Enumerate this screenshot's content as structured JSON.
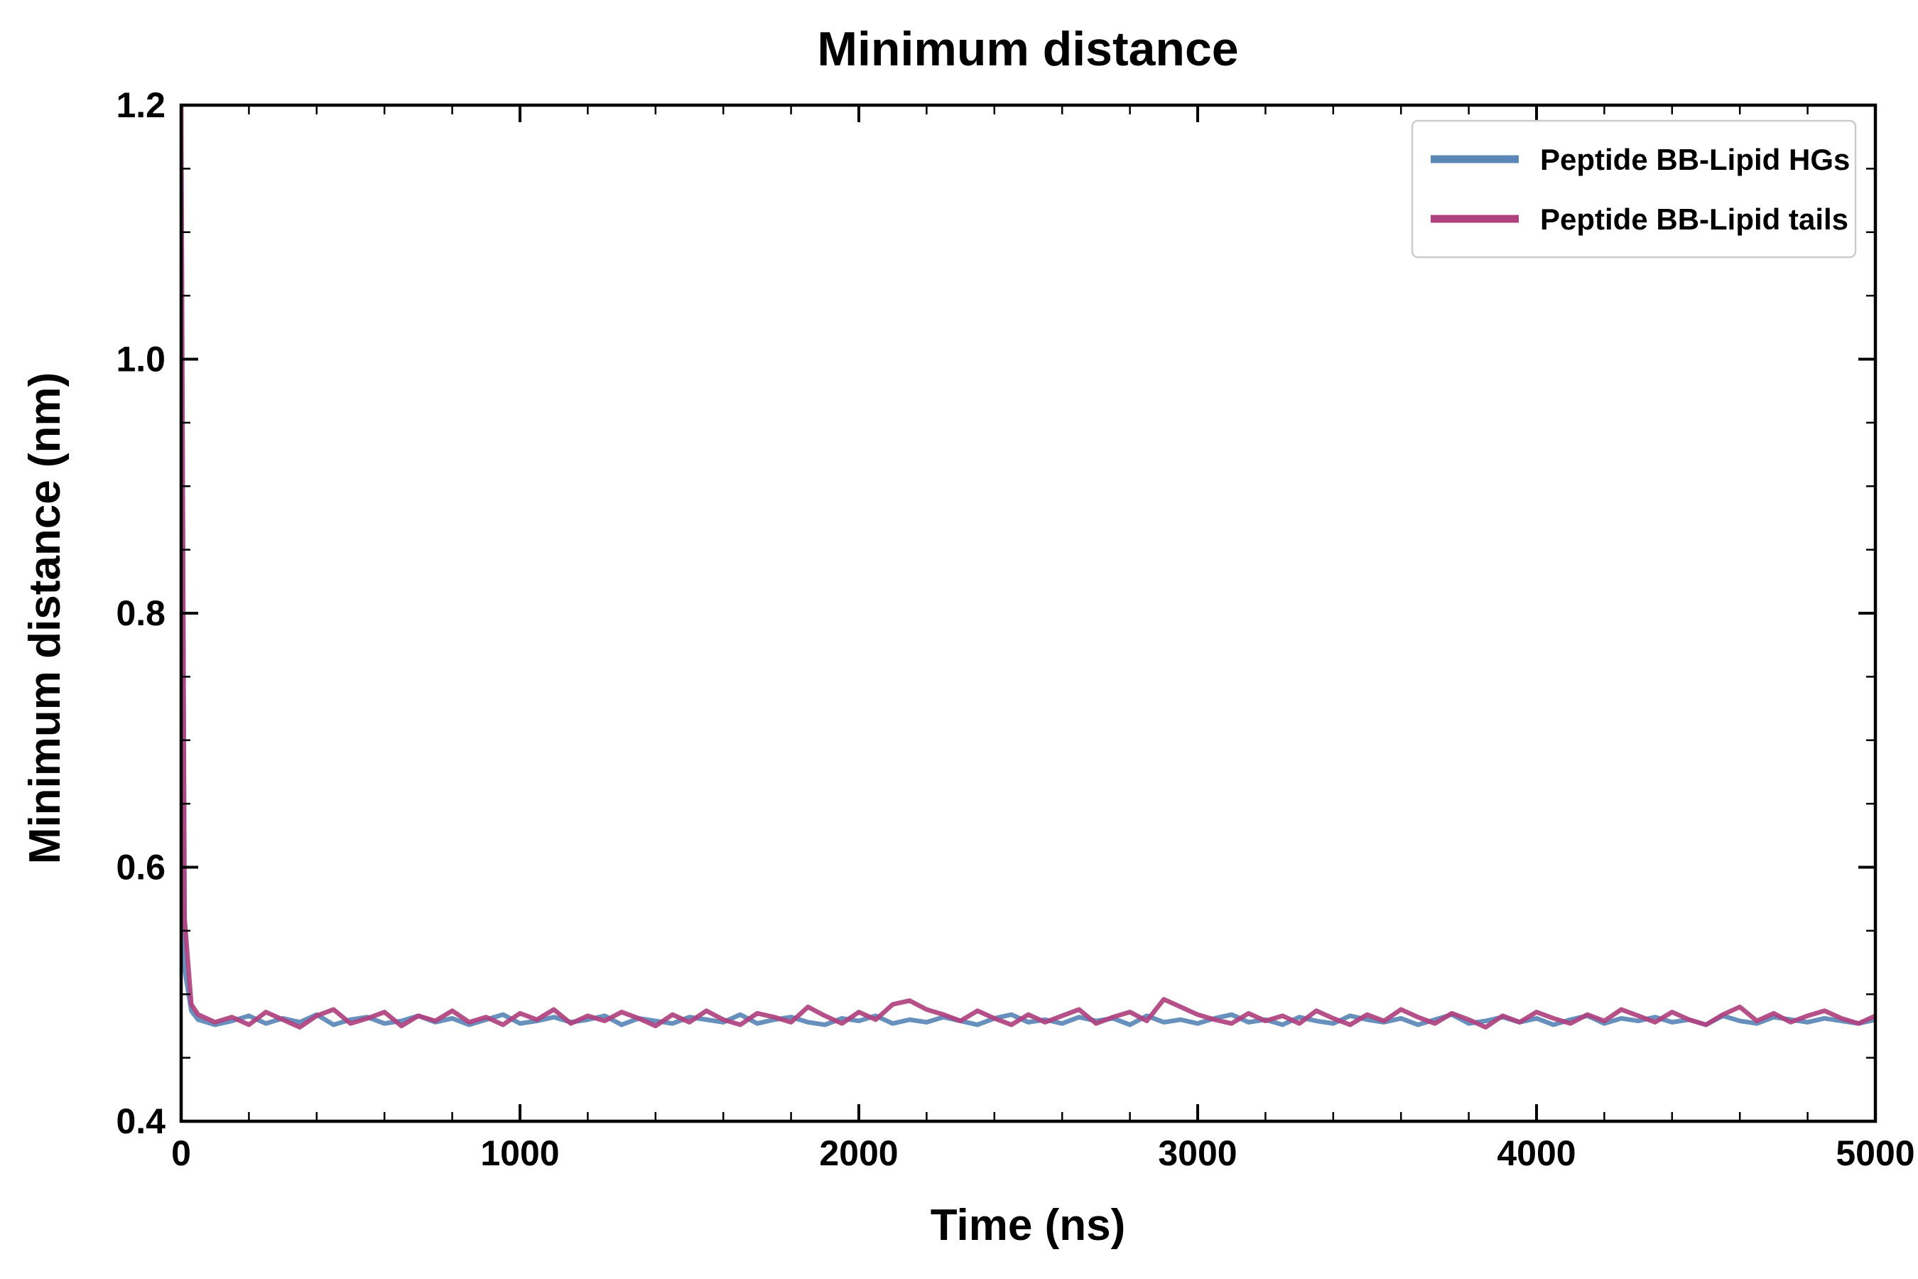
{
  "chart_data": {
    "type": "line",
    "title": "Minimum distance",
    "xlabel": "Time (ns)",
    "ylabel": "Minimum distance (nm)",
    "xlim": [
      0,
      5000
    ],
    "ylim": [
      0.4,
      1.2
    ],
    "x_major_ticks": [
      0,
      1000,
      2000,
      3000,
      4000,
      5000
    ],
    "y_major_ticks": [
      0.4,
      0.6,
      0.8,
      1.0,
      1.2
    ],
    "x_minor_step": 200,
    "y_minor_step": 0.05,
    "grid": false,
    "legend_position": "upper right",
    "legend_border_color": "#cccccc",
    "axis_color": "#000000",
    "background_color": "#ffffff",
    "x": [
      0,
      10,
      30,
      50,
      100,
      150,
      200,
      250,
      300,
      350,
      400,
      450,
      500,
      550,
      600,
      650,
      700,
      750,
      800,
      850,
      900,
      950,
      1000,
      1050,
      1100,
      1150,
      1200,
      1250,
      1300,
      1350,
      1400,
      1450,
      1500,
      1550,
      1600,
      1650,
      1700,
      1750,
      1800,
      1850,
      1900,
      1950,
      2000,
      2050,
      2100,
      2150,
      2200,
      2250,
      2300,
      2350,
      2400,
      2450,
      2500,
      2550,
      2600,
      2650,
      2700,
      2750,
      2800,
      2850,
      2900,
      2950,
      3000,
      3050,
      3100,
      3150,
      3200,
      3250,
      3300,
      3350,
      3400,
      3450,
      3500,
      3550,
      3600,
      3650,
      3700,
      3750,
      3800,
      3850,
      3900,
      3950,
      4000,
      4050,
      4100,
      4150,
      4200,
      4250,
      4300,
      4350,
      4400,
      4450,
      4500,
      4550,
      4600,
      4650,
      4700,
      4750,
      4800,
      4850,
      4900,
      4950,
      5000
    ],
    "series": [
      {
        "name": "Peptide BB-Lipid HGs",
        "color": "#5b87b7",
        "values": [
          1.2,
          0.52,
          0.487,
          0.48,
          0.476,
          0.479,
          0.483,
          0.477,
          0.481,
          0.478,
          0.484,
          0.476,
          0.48,
          0.482,
          0.477,
          0.479,
          0.483,
          0.478,
          0.481,
          0.476,
          0.48,
          0.484,
          0.477,
          0.479,
          0.482,
          0.478,
          0.48,
          0.483,
          0.476,
          0.481,
          0.479,
          0.477,
          0.482,
          0.48,
          0.478,
          0.484,
          0.477,
          0.48,
          0.482,
          0.478,
          0.476,
          0.481,
          0.479,
          0.483,
          0.477,
          0.48,
          0.478,
          0.482,
          0.479,
          0.476,
          0.481,
          0.484,
          0.478,
          0.48,
          0.477,
          0.482,
          0.479,
          0.481,
          0.476,
          0.483,
          0.478,
          0.48,
          0.477,
          0.481,
          0.484,
          0.478,
          0.48,
          0.476,
          0.482,
          0.479,
          0.477,
          0.483,
          0.48,
          0.478,
          0.481,
          0.476,
          0.48,
          0.484,
          0.477,
          0.479,
          0.482,
          0.478,
          0.481,
          0.476,
          0.48,
          0.483,
          0.477,
          0.481,
          0.479,
          0.482,
          0.478,
          0.48,
          0.476,
          0.483,
          0.479,
          0.477,
          0.482,
          0.48,
          0.478,
          0.481,
          0.479,
          0.477,
          0.48
        ]
      },
      {
        "name": "Peptide BB-Lipid tails",
        "color": "#b0417f",
        "values": [
          1.2,
          0.56,
          0.492,
          0.484,
          0.478,
          0.482,
          0.476,
          0.486,
          0.48,
          0.474,
          0.483,
          0.488,
          0.477,
          0.481,
          0.486,
          0.475,
          0.483,
          0.479,
          0.487,
          0.478,
          0.482,
          0.476,
          0.485,
          0.48,
          0.488,
          0.477,
          0.483,
          0.479,
          0.486,
          0.481,
          0.475,
          0.484,
          0.478,
          0.487,
          0.48,
          0.476,
          0.485,
          0.482,
          0.478,
          0.49,
          0.483,
          0.477,
          0.486,
          0.48,
          0.492,
          0.495,
          0.488,
          0.484,
          0.479,
          0.487,
          0.481,
          0.476,
          0.484,
          0.478,
          0.483,
          0.488,
          0.477,
          0.482,
          0.486,
          0.479,
          0.496,
          0.49,
          0.484,
          0.48,
          0.477,
          0.485,
          0.479,
          0.483,
          0.477,
          0.487,
          0.481,
          0.476,
          0.484,
          0.479,
          0.488,
          0.482,
          0.477,
          0.485,
          0.48,
          0.474,
          0.483,
          0.478,
          0.486,
          0.481,
          0.477,
          0.484,
          0.479,
          0.488,
          0.483,
          0.478,
          0.486,
          0.48,
          0.476,
          0.484,
          0.49,
          0.479,
          0.485,
          0.478,
          0.483,
          0.487,
          0.481,
          0.477,
          0.483
        ]
      }
    ]
  }
}
